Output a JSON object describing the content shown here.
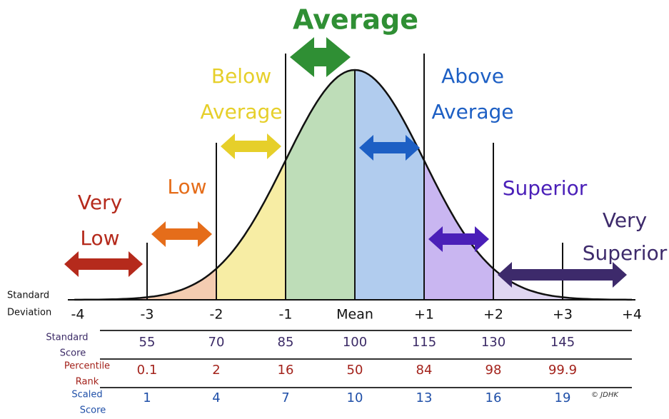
{
  "title": "Average",
  "sd_row": {
    "label_lines": [
      "Standard",
      "Deviation"
    ],
    "ticks": [
      "-4",
      "-3",
      "-2",
      "-1",
      "Mean",
      "+1",
      "+2",
      "+3",
      "+4"
    ]
  },
  "bands": [
    {
      "label_lines": [
        "Very",
        "Low"
      ],
      "color": "#b52a1c",
      "fill": "#e8b7b0"
    },
    {
      "label_lines": [
        "Low"
      ],
      "color": "#e56d1a",
      "fill": "#f3c7a8"
    },
    {
      "label_lines": [
        "Below",
        "Average"
      ],
      "color": "#e6cf2a",
      "fill": "#f6eb9a"
    },
    {
      "label_lines": [],
      "color": "#2f8f34",
      "fill": "#b7d9b0"
    },
    {
      "label_lines": [
        "Above",
        "Average"
      ],
      "color": "#1d5fc4",
      "fill": "#a9c6ec"
    },
    {
      "label_lines": [
        "Superior"
      ],
      "color": "#4a1fb8",
      "fill": "#c3aef0"
    },
    {
      "label_lines": [
        "Very",
        "Superior"
      ],
      "color": "#3d2a6b",
      "fill": "#ddd3f1"
    }
  ],
  "rows": [
    {
      "label_lines": [
        "Standard",
        "Score"
      ],
      "color": "#3b2a66",
      "values": [
        "55",
        "70",
        "85",
        "100",
        "115",
        "130",
        "145"
      ]
    },
    {
      "label_lines": [
        "Percentile",
        "Rank"
      ],
      "color": "#a3221b",
      "values": [
        "0.1",
        "2",
        "16",
        "50",
        "84",
        "98",
        "99.9"
      ]
    },
    {
      "label_lines": [
        "Scaled",
        "Score"
      ],
      "color": "#1f4fa8",
      "values": [
        "1",
        "4",
        "7",
        "10",
        "13",
        "16",
        "19"
      ]
    }
  ],
  "copyright": "© JDHK"
}
